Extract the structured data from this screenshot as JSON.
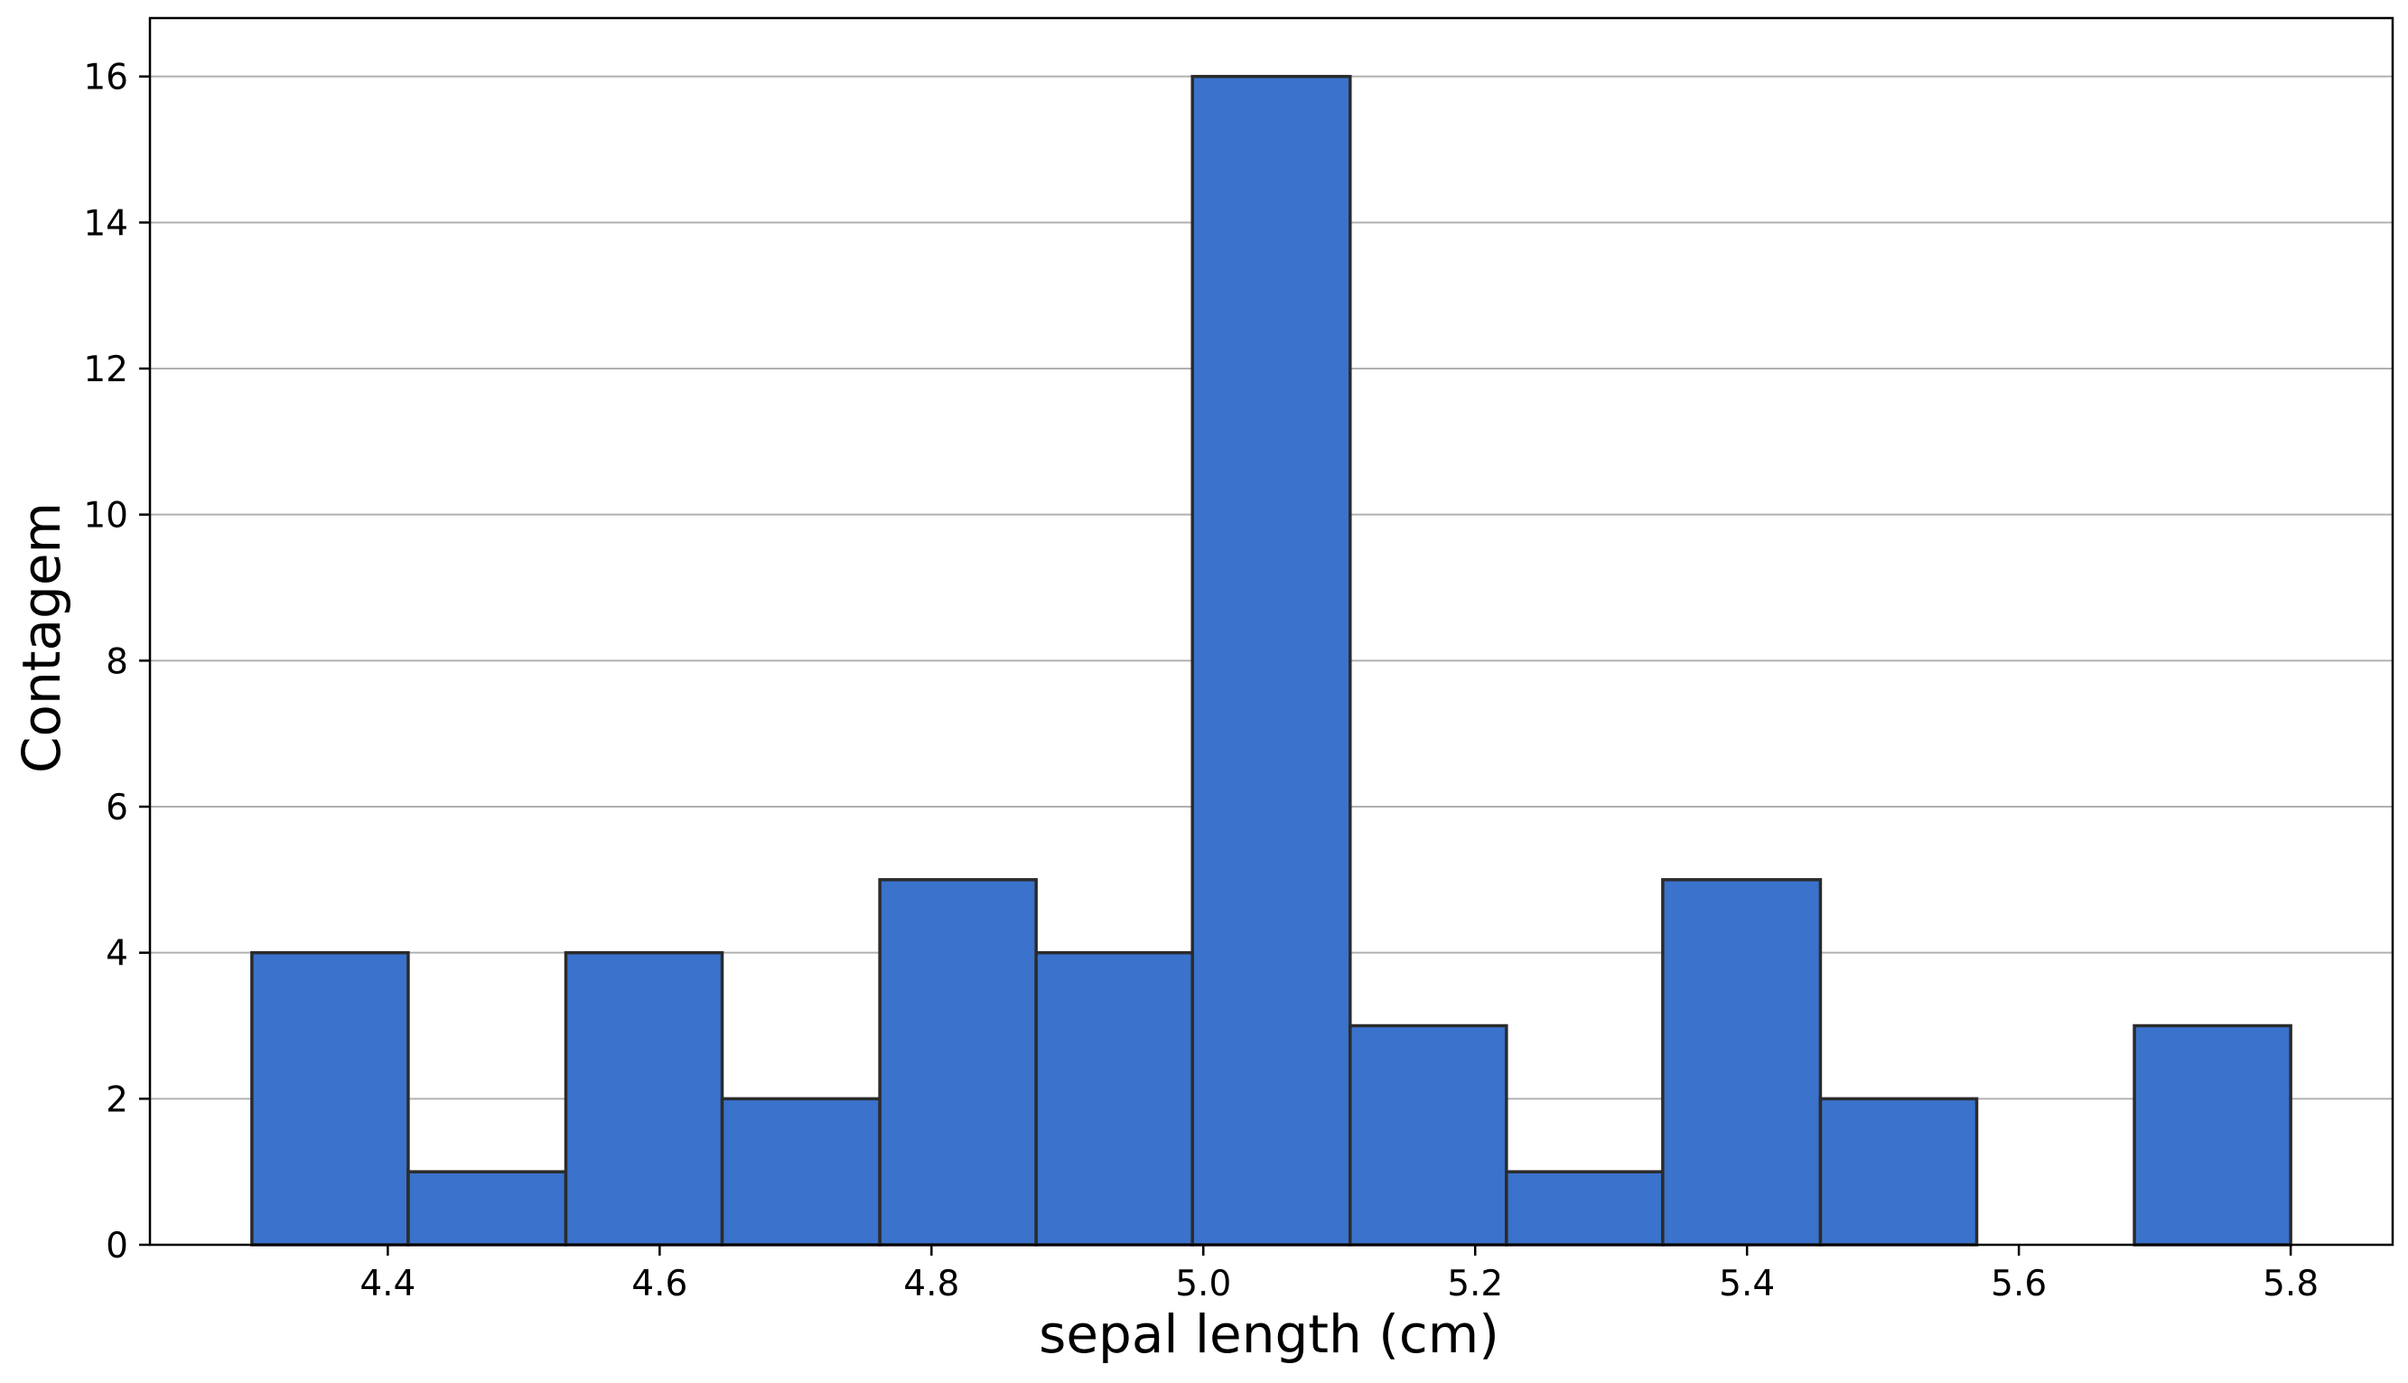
{
  "chart_data": {
    "type": "bar",
    "subtype": "histogram",
    "title": "",
    "xlabel": "sepal length (cm)",
    "ylabel": "Contagem",
    "bin_edges": [
      4.3,
      4.415,
      4.531,
      4.646,
      4.762,
      4.877,
      4.992,
      5.108,
      5.223,
      5.338,
      5.454,
      5.569,
      5.685,
      5.8
    ],
    "values": [
      4,
      1,
      4,
      2,
      5,
      4,
      16,
      3,
      1,
      5,
      2,
      0,
      3
    ],
    "xlim": [
      4.225,
      5.875
    ],
    "ylim": [
      0,
      16.8
    ],
    "xticks": [
      4.4,
      4.6,
      4.8,
      5.0,
      5.2,
      5.4,
      5.6,
      5.8
    ],
    "xtick_labels": [
      "4.4",
      "4.6",
      "4.8",
      "5.0",
      "5.2",
      "5.4",
      "5.6",
      "5.8"
    ],
    "yticks": [
      0,
      2,
      4,
      6,
      8,
      10,
      12,
      14,
      16
    ],
    "ytick_labels": [
      "0",
      "2",
      "4",
      "6",
      "8",
      "10",
      "12",
      "14",
      "16"
    ],
    "grid": {
      "x": false,
      "y": true
    },
    "legend": "none",
    "colors": {
      "bar_fill": "#3a72cc",
      "bar_edge": "#2b2b2b",
      "grid": "#b0b0b0",
      "axes": "#000000"
    }
  }
}
